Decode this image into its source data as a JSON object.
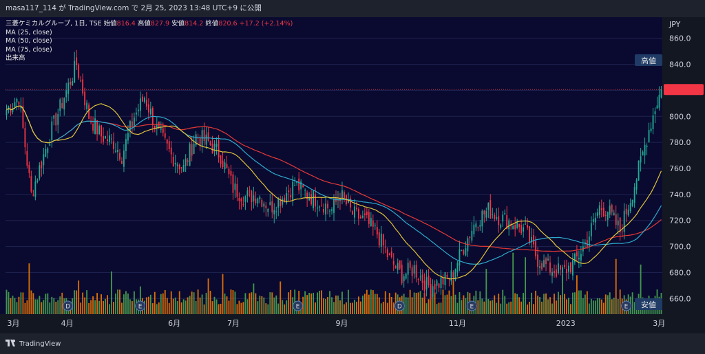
{
  "header": {
    "attribution": "masa117_114 が TradingView.com で 2月 25, 2023 13:48 UTC+9 に公開"
  },
  "legend": {
    "symbol": "三菱ケミカルグループ, 1日, TSE",
    "open_label": "始値",
    "open": "816.4",
    "high_label": "高値",
    "high": "827.9",
    "low_label": "安値",
    "low": "814.2",
    "close_label": "終値",
    "close": "820.6",
    "change": "+17.2 (+2.14%)",
    "ma25": "MA (25, close)",
    "ma50": "MA (50, close)",
    "ma75": "MA (75, close)",
    "volume": "出来高"
  },
  "footer": {
    "brand": "TradingView"
  },
  "chart_data": {
    "type": "candlestick",
    "currency": "JPY",
    "y_axis_ticks": [
      660,
      680,
      700,
      720,
      740,
      760,
      780,
      800,
      820,
      840,
      860
    ],
    "ylim": [
      648,
      872
    ],
    "x_axis_labels": [
      "3月",
      "4月",
      "6月",
      "7月",
      "9月",
      "11月",
      "2023",
      "3月"
    ],
    "high_marker_label": "高値",
    "low_marker_label": "安値",
    "current_price": 820.6,
    "colors": {
      "up": "#22ab94",
      "down": "#f23645",
      "ma25": "#e0c43a",
      "ma50": "#2eaacc",
      "ma75": "#e53935",
      "vol_up": "#4caf50",
      "vol_down": "#ff7f00",
      "bg": "#0a0a30",
      "axis_bg": "#131722"
    },
    "events": [
      "D",
      "E",
      "E",
      "D",
      "E",
      "E"
    ],
    "anchors": [
      [
        0,
        805
      ],
      [
        6,
        815
      ],
      [
        12,
        740
      ],
      [
        16,
        760
      ],
      [
        22,
        790
      ],
      [
        28,
        815
      ],
      [
        34,
        840
      ],
      [
        40,
        800
      ],
      [
        46,
        785
      ],
      [
        52,
        780
      ],
      [
        56,
        770
      ],
      [
        62,
        800
      ],
      [
        67,
        815
      ],
      [
        73,
        790
      ],
      [
        80,
        770
      ],
      [
        86,
        760
      ],
      [
        92,
        785
      ],
      [
        98,
        780
      ],
      [
        104,
        770
      ],
      [
        110,
        745
      ],
      [
        116,
        738
      ],
      [
        122,
        740
      ],
      [
        128,
        730
      ],
      [
        134,
        738
      ],
      [
        140,
        748
      ],
      [
        146,
        740
      ],
      [
        152,
        735
      ],
      [
        158,
        728
      ],
      [
        162,
        740
      ],
      [
        168,
        725
      ],
      [
        174,
        720
      ],
      [
        180,
        710
      ],
      [
        186,
        690
      ],
      [
        192,
        678
      ],
      [
        198,
        683
      ],
      [
        204,
        670
      ],
      [
        210,
        672
      ],
      [
        216,
        677
      ],
      [
        222,
        700
      ],
      [
        228,
        720
      ],
      [
        234,
        728
      ],
      [
        240,
        722
      ],
      [
        246,
        718
      ],
      [
        252,
        712
      ],
      [
        258,
        690
      ],
      [
        264,
        683
      ],
      [
        270,
        680
      ],
      [
        276,
        688
      ],
      [
        282,
        705
      ],
      [
        288,
        730
      ],
      [
        292,
        728
      ],
      [
        298,
        712
      ],
      [
        304,
        742
      ],
      [
        308,
        765
      ],
      [
        312,
        790
      ],
      [
        316,
        812
      ],
      [
        318,
        820.6
      ]
    ],
    "n_bars": 319
  }
}
